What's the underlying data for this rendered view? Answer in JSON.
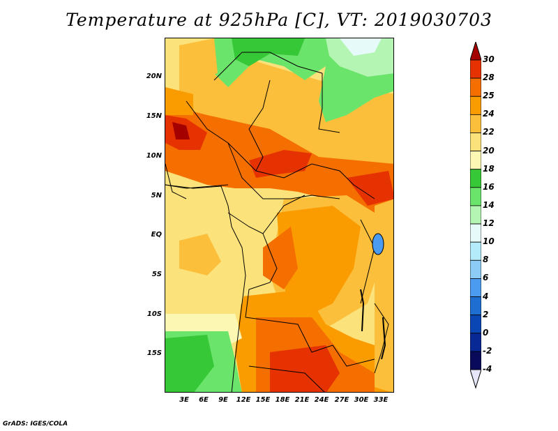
{
  "title": "Temperature at 925hPa [C], VT: 2019030703",
  "footer": "GrADS: IGES/COLA",
  "latitude_labels": [
    "20N",
    "15N",
    "10N",
    "5N",
    "EQ",
    "5S",
    "10S",
    "15S"
  ],
  "longitude_labels": [
    "3E",
    "6E",
    "9E",
    "12E",
    "15E",
    "18E",
    "21E",
    "24E",
    "27E",
    "30E",
    "33E"
  ],
  "colorbar": {
    "labels": [
      "30",
      "28",
      "25",
      "24",
      "22",
      "20",
      "18",
      "16",
      "14",
      "12",
      "10",
      "8",
      "6",
      "4",
      "2",
      "0",
      "-2",
      "-4"
    ],
    "colors": [
      "#a50000",
      "#e63200",
      "#f56e00",
      "#fa9b00",
      "#fbbf3c",
      "#fce27a",
      "#fdf7b4",
      "#37c837",
      "#6be46b",
      "#b4f5b4",
      "#e6fafa",
      "#b4ebfa",
      "#8ccbf5",
      "#4b9bf0",
      "#1e6ed2",
      "#0a46b4",
      "#082896",
      "#0a0a5a"
    ]
  },
  "map_colors": {
    "c30": "#a50000",
    "c28": "#e63200",
    "c25": "#f56e00",
    "c24": "#fa9b00",
    "c22": "#fbbf3c",
    "c20": "#fce27a",
    "c18": "#fdf7b4",
    "c16": "#37c837",
    "c14": "#6be46b",
    "c12": "#b4f5b4",
    "c10": "#e6fafa"
  }
}
